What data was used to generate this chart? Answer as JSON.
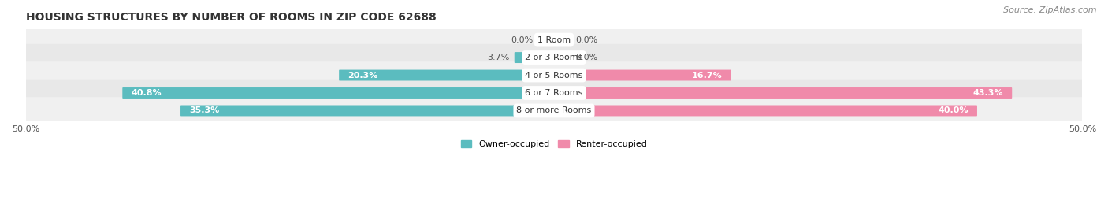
{
  "title": "HOUSING STRUCTURES BY NUMBER OF ROOMS IN ZIP CODE 62688",
  "source": "Source: ZipAtlas.com",
  "categories": [
    "1 Room",
    "2 or 3 Rooms",
    "4 or 5 Rooms",
    "6 or 7 Rooms",
    "8 or more Rooms"
  ],
  "owner_values": [
    0.0,
    3.7,
    20.3,
    40.8,
    35.3
  ],
  "renter_values": [
    0.0,
    0.0,
    16.7,
    43.3,
    40.0
  ],
  "owner_color": "#5bbcbf",
  "renter_color": "#f08aaa",
  "row_bg_colors": [
    "#f0f0f0",
    "#e8e8e8"
  ],
  "axis_max": 50.0,
  "bar_height": 0.52,
  "min_bar_display": 1.5,
  "figsize": [
    14.06,
    2.69
  ],
  "dpi": 100,
  "title_fontsize": 10,
  "source_fontsize": 8,
  "label_fontsize": 8,
  "category_fontsize": 8
}
